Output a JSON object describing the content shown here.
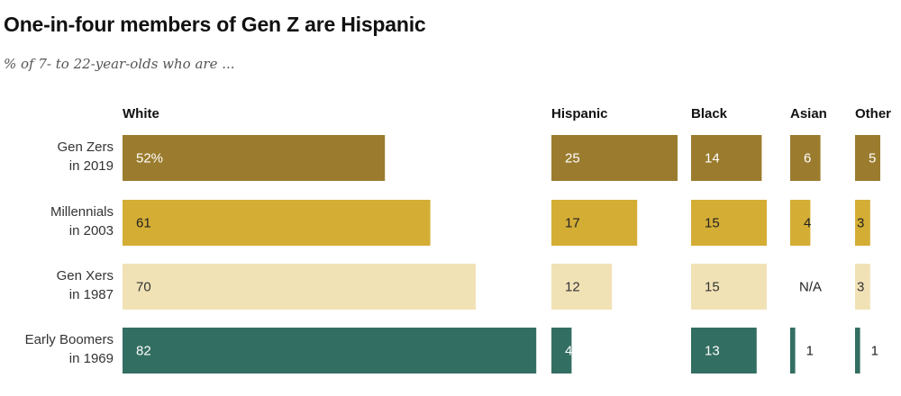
{
  "title": "One-in-four members of Gen Z are Hispanic",
  "subtitle": "% of 7- to 22-year-olds who are ...",
  "colors": {
    "gen_z": "#9b7c2e",
    "millennials": "#d4ad35",
    "gen_x": "#f1e2b6",
    "boomers": "#336e62"
  },
  "chart_data": {
    "type": "bar",
    "orientation": "horizontal",
    "title": "One-in-four members of Gen Z are Hispanic",
    "subtitle": "% of 7- to 22-year-olds who are ...",
    "categories": [
      {
        "line1": "Gen Zers",
        "line2": "in 2019"
      },
      {
        "line1": "Millennials",
        "line2": "in 2003"
      },
      {
        "line1": "Gen Xers",
        "line2": "in 1987"
      },
      {
        "line1": "Early Boomers",
        "line2": "in 1969"
      }
    ],
    "series": [
      {
        "name": "White",
        "values": [
          52,
          61,
          70,
          82
        ],
        "labels": [
          "52%",
          "61",
          "70",
          "82"
        ]
      },
      {
        "name": "Hispanic",
        "values": [
          25,
          17,
          12,
          4
        ],
        "labels": [
          "25",
          "17",
          "12",
          "4"
        ]
      },
      {
        "name": "Black",
        "values": [
          14,
          15,
          15,
          13
        ],
        "labels": [
          "14",
          "15",
          "15",
          "13"
        ]
      },
      {
        "name": "Asian",
        "values": [
          6,
          4,
          null,
          1
        ],
        "labels": [
          "6",
          "4",
          "N/A",
          "1"
        ]
      },
      {
        "name": "Other",
        "values": [
          5,
          3,
          3,
          1
        ],
        "labels": [
          "5",
          "3",
          "3",
          "1"
        ]
      }
    ],
    "row_colors": [
      "#9b7c2e",
      "#d4ad35",
      "#f1e2b6",
      "#336e62"
    ],
    "label_colors_inside": [
      "#ffffff",
      "#222222",
      "#333333",
      "#ffffff"
    ]
  }
}
